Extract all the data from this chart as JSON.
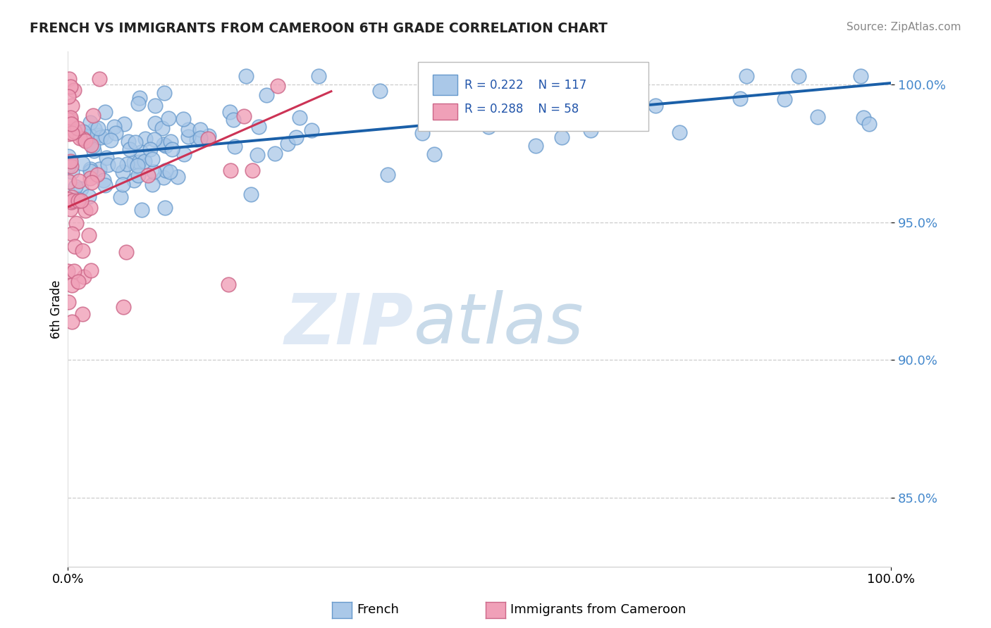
{
  "title": "FRENCH VS IMMIGRANTS FROM CAMEROON 6TH GRADE CORRELATION CHART",
  "source": "Source: ZipAtlas.com",
  "ylabel": "6th Grade",
  "xlim": [
    0.0,
    1.0
  ],
  "ylim": [
    0.825,
    1.012
  ],
  "yticks": [
    0.85,
    0.9,
    0.95,
    1.0
  ],
  "ytick_labels": [
    "85.0%",
    "90.0%",
    "95.0%",
    "100.0%"
  ],
  "xtick_labels": [
    "0.0%",
    "100.0%"
  ],
  "french_color": "#aac8e8",
  "french_edge": "#6699cc",
  "cameroon_color": "#f0a0b8",
  "cameroon_edge": "#cc6688",
  "french_R": 0.222,
  "french_N": 117,
  "cameroon_R": 0.288,
  "cameroon_N": 58,
  "blue_line_color": "#1a5fa8",
  "pink_line_color": "#cc3355",
  "legend_blue_color": "#aac8e8",
  "legend_pink_color": "#f0a0b8",
  "legend_blue_edge": "#6699cc",
  "legend_pink_edge": "#cc6688",
  "watermark_zip": "ZIP",
  "watermark_atlas": "atlas",
  "background_color": "#ffffff",
  "grid_color": "#cccccc",
  "blue_line_x": [
    0.0,
    1.0
  ],
  "blue_line_y": [
    0.9735,
    1.0005
  ],
  "pink_line_x": [
    0.0,
    0.32
  ],
  "pink_line_y": [
    0.9555,
    0.9975
  ],
  "french_seed": 77,
  "cameroon_seed": 42
}
